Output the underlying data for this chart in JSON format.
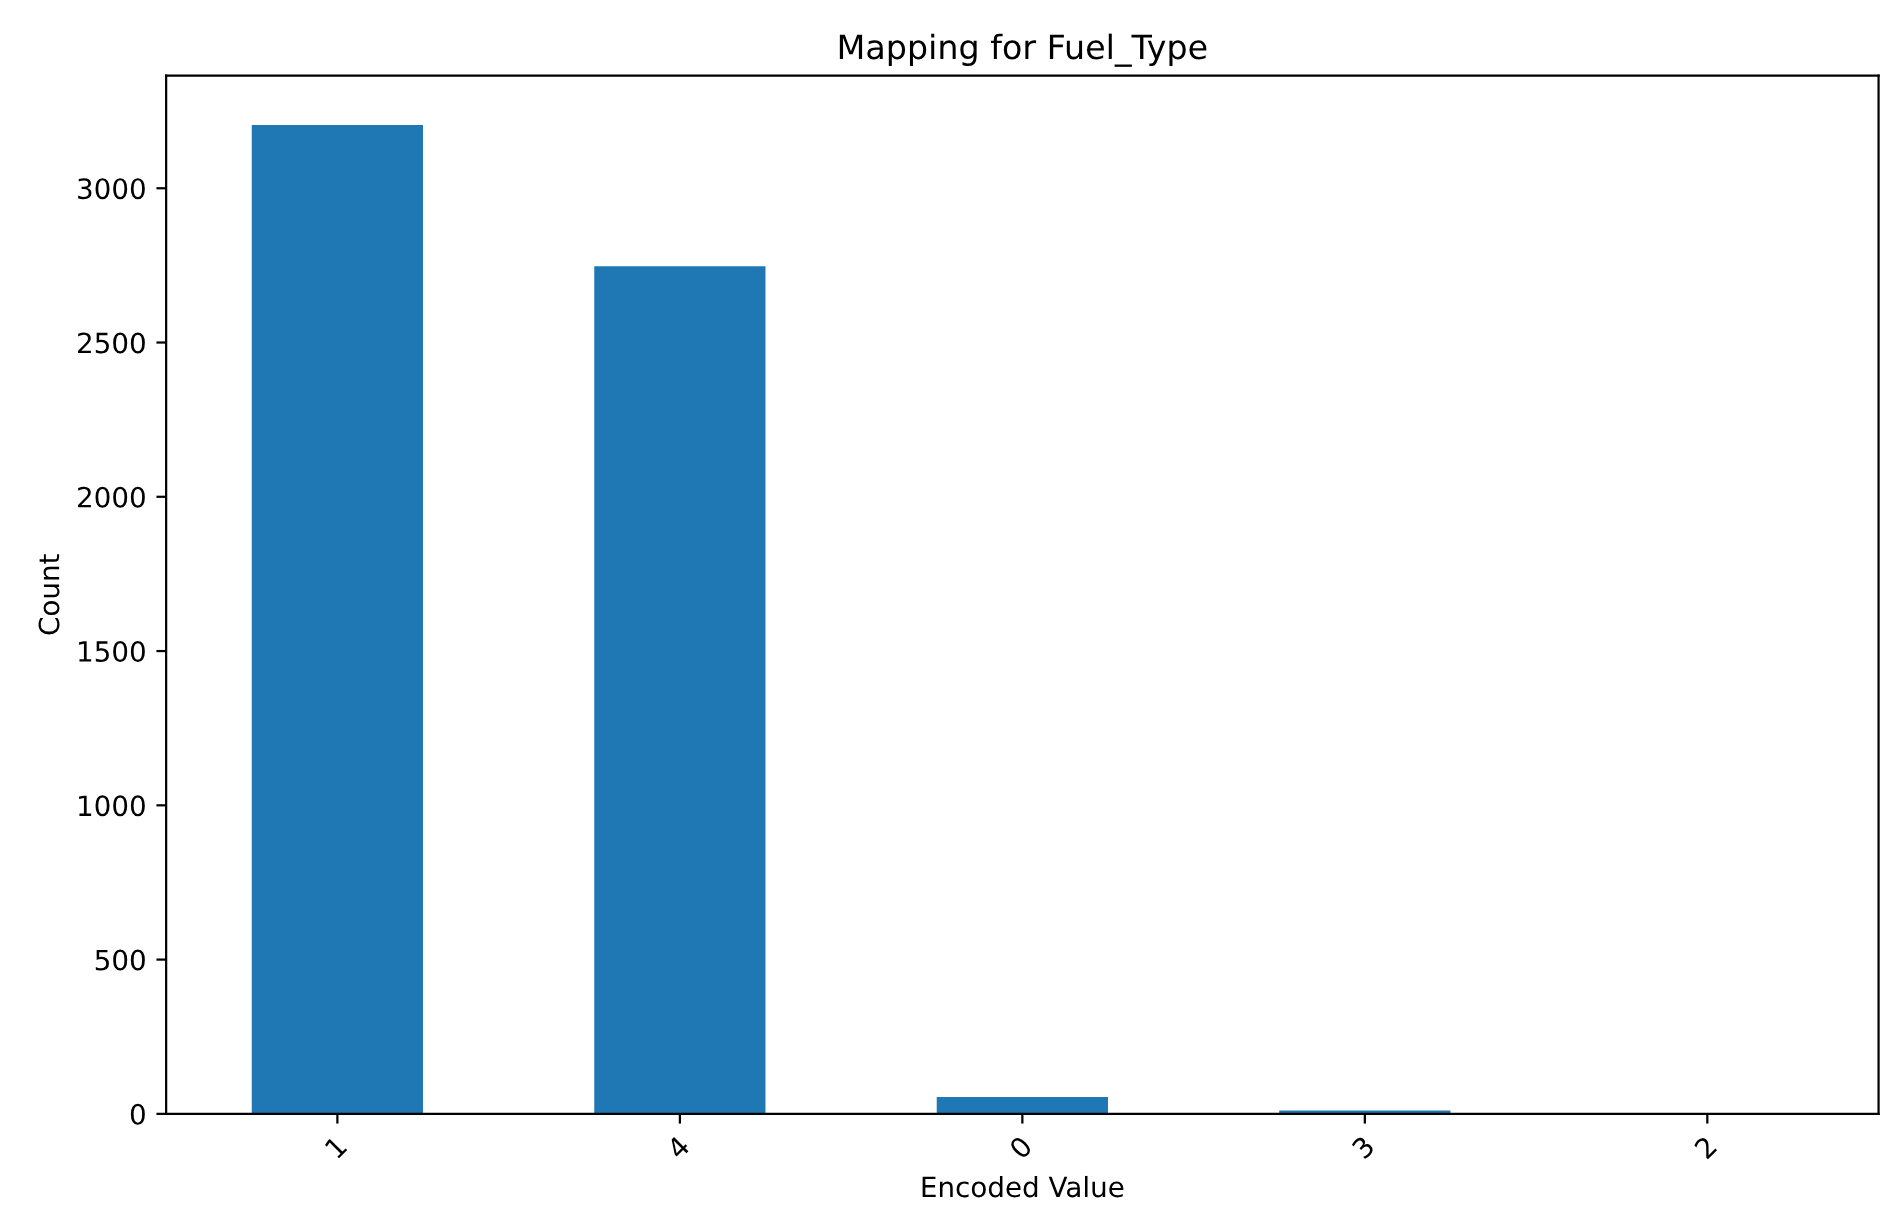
{
  "chart_data": {
    "type": "bar",
    "title": "Mapping for Fuel_Type",
    "xlabel": "Encoded Value",
    "ylabel": "Count",
    "categories": [
      "1",
      "4",
      "0",
      "3",
      "2"
    ],
    "values": [
      3205,
      2747,
      55,
      11,
      3
    ],
    "color": "#1f77b4",
    "ylim": [
      0,
      3365
    ],
    "yticks": [
      0,
      500,
      1000,
      1500,
      2000,
      2500,
      3000
    ],
    "grid": false
  }
}
